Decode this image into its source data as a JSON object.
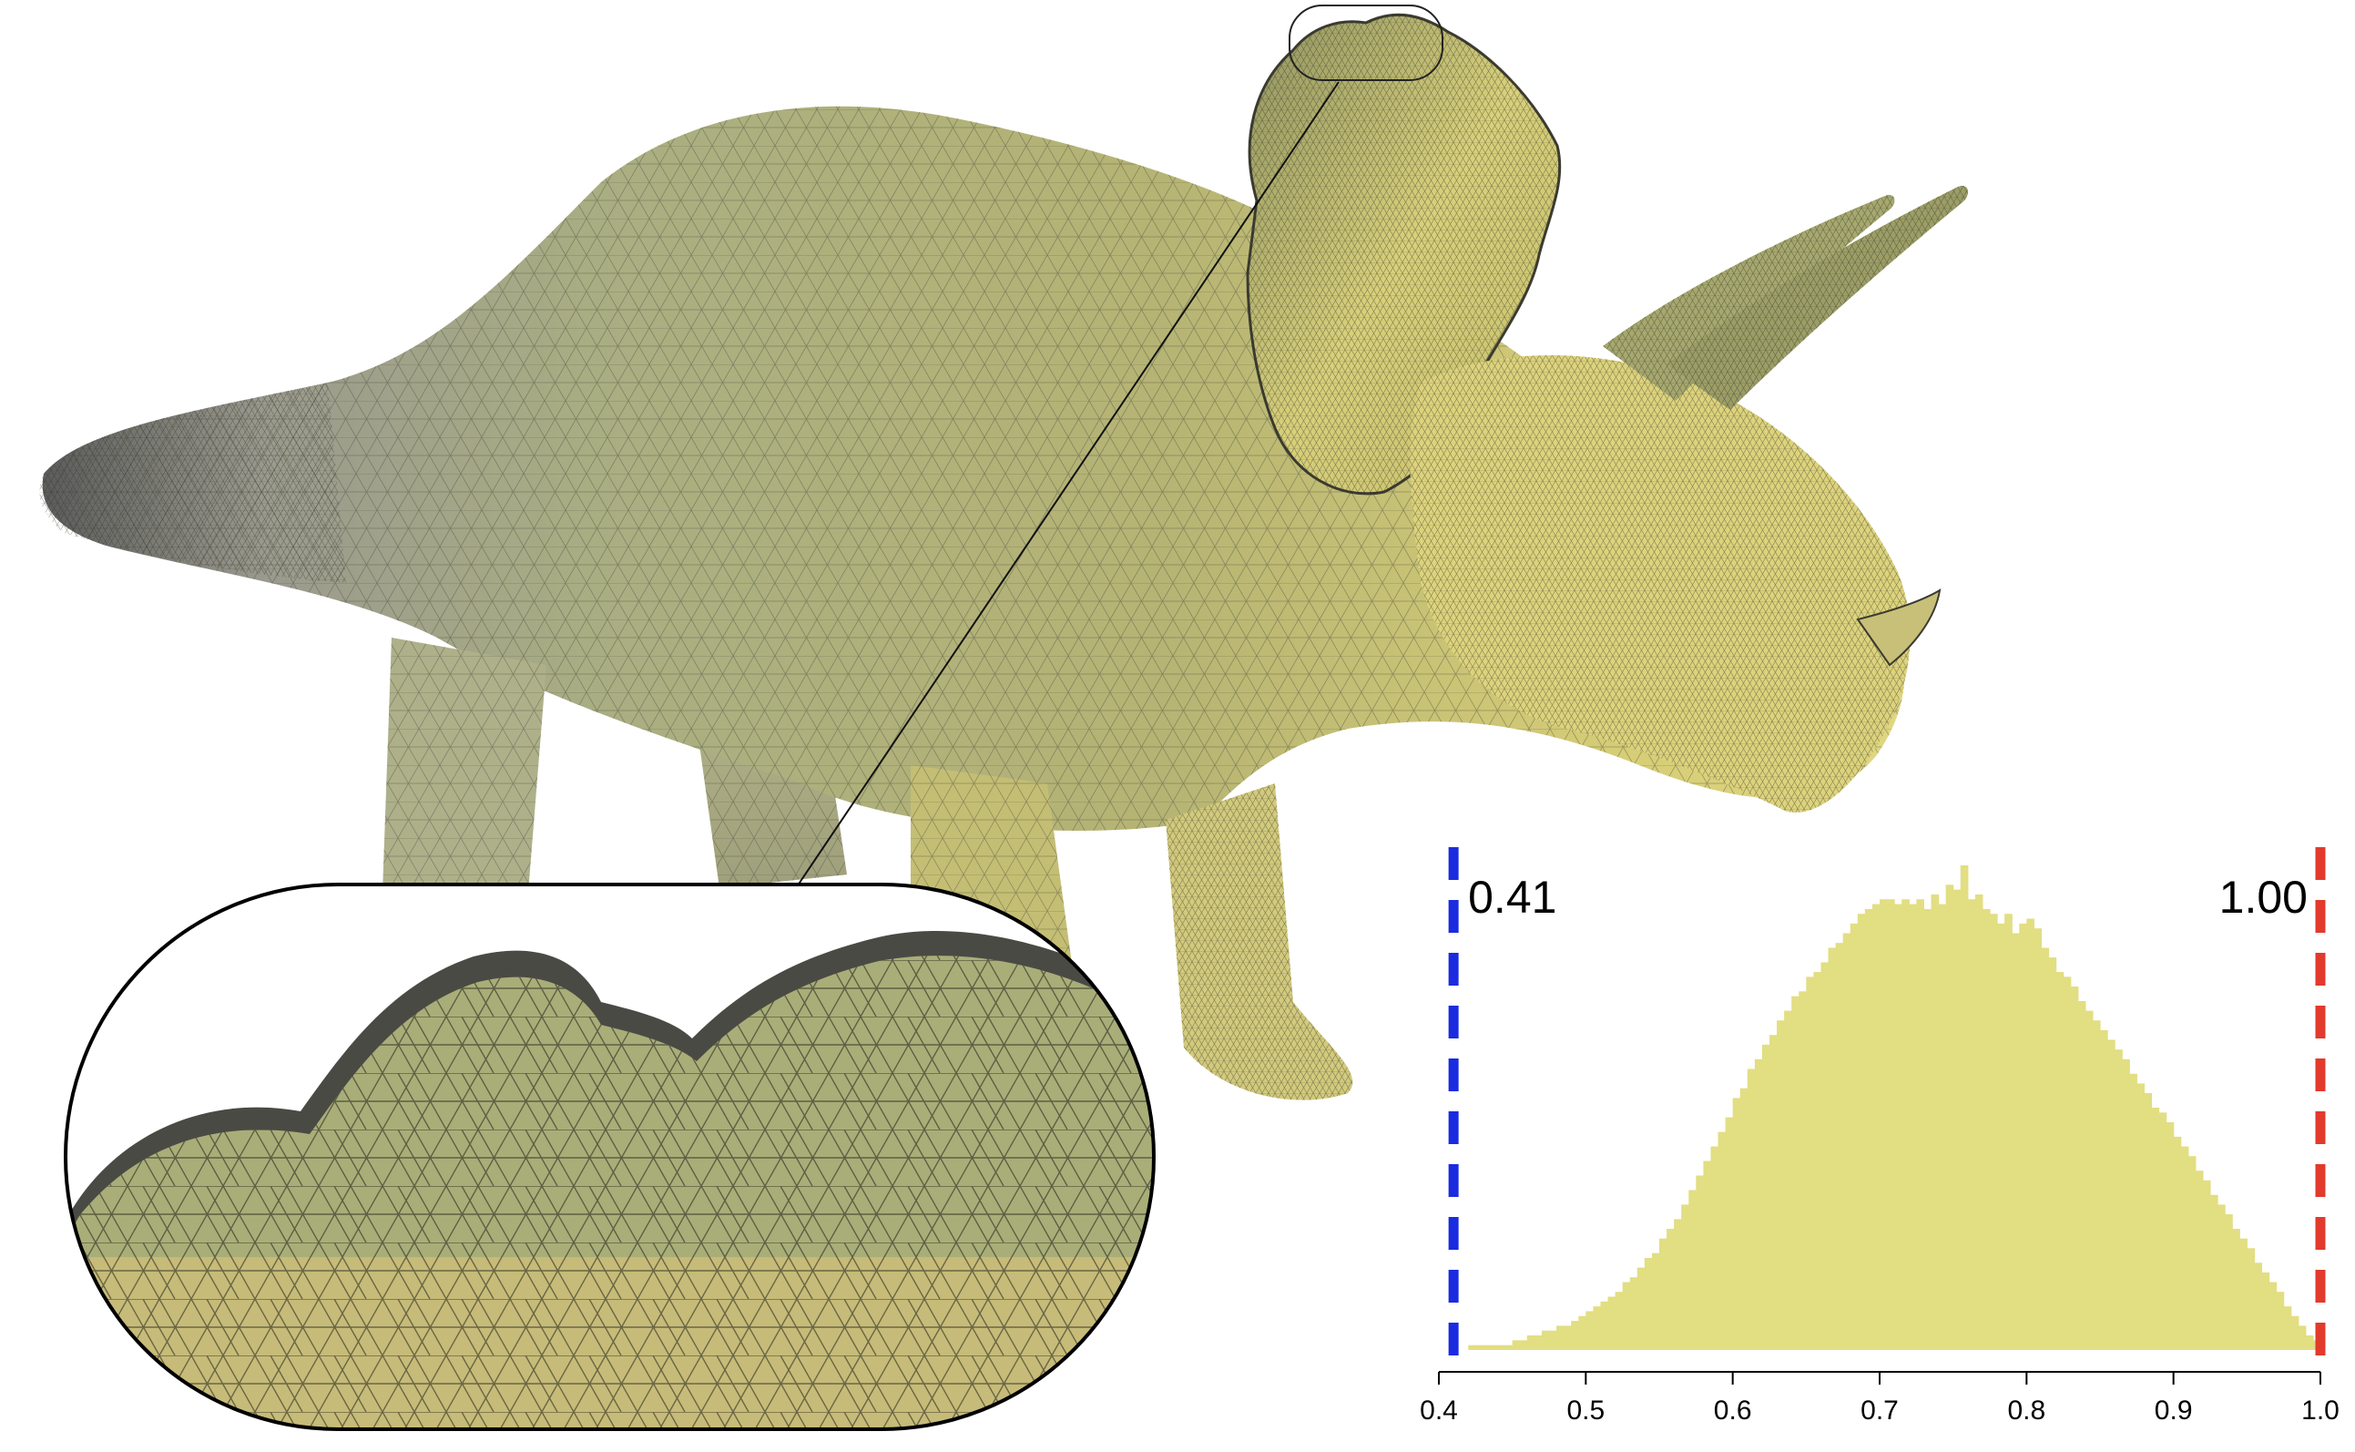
{
  "figure": {
    "subject": "triceratops-tetrahedral-mesh",
    "colors": {
      "background": "#ffffff",
      "mesh_dark": "#6b6b6b",
      "mesh_green": "#a7ae78",
      "mesh_yellow": "#d8d07a",
      "histogram_fill": "#e2de82",
      "min_marker": "#1a2be0",
      "max_marker": "#e23a2c"
    }
  },
  "chart_data": {
    "type": "bar",
    "xlabel": "",
    "ylabel": "",
    "xlim": [
      0.4,
      1.0
    ],
    "x_ticks": [
      "0.4",
      "0.5",
      "0.6",
      "0.7",
      "0.8",
      "0.9",
      "1.0"
    ],
    "x_tick_values": [
      0.4,
      0.5,
      0.6,
      0.7,
      0.8,
      0.9,
      1.0
    ],
    "grid": false,
    "bin_start": 0.42,
    "bin_width": 0.005,
    "values": [
      0.01,
      0.01,
      0.01,
      0.01,
      0.01,
      0.01,
      0.02,
      0.02,
      0.03,
      0.03,
      0.04,
      0.04,
      0.05,
      0.05,
      0.06,
      0.07,
      0.08,
      0.09,
      0.1,
      0.11,
      0.12,
      0.14,
      0.15,
      0.17,
      0.19,
      0.2,
      0.23,
      0.25,
      0.27,
      0.3,
      0.33,
      0.36,
      0.39,
      0.42,
      0.45,
      0.48,
      0.52,
      0.54,
      0.58,
      0.6,
      0.63,
      0.65,
      0.68,
      0.7,
      0.73,
      0.74,
      0.77,
      0.78,
      0.8,
      0.83,
      0.84,
      0.86,
      0.88,
      0.9,
      0.91,
      0.92,
      0.93,
      0.93,
      0.92,
      0.93,
      0.92,
      0.93,
      0.91,
      0.94,
      0.92,
      0.96,
      0.95,
      1.0,
      0.93,
      0.94,
      0.91,
      0.9,
      0.88,
      0.9,
      0.86,
      0.88,
      0.89,
      0.87,
      0.83,
      0.81,
      0.78,
      0.77,
      0.75,
      0.72,
      0.7,
      0.68,
      0.66,
      0.64,
      0.62,
      0.6,
      0.57,
      0.55,
      0.53,
      0.5,
      0.49,
      0.47,
      0.44,
      0.42,
      0.4,
      0.37,
      0.35,
      0.32,
      0.3,
      0.28,
      0.25,
      0.23,
      0.21,
      0.18,
      0.16,
      0.14,
      0.12,
      0.09,
      0.07,
      0.05,
      0.03,
      0.02
    ],
    "markers": [
      {
        "name": "min",
        "value": 0.41,
        "label": "0.41",
        "color": "#1a2be0"
      },
      {
        "name": "max",
        "value": 1.0,
        "label": "1.00",
        "color": "#e23a2c"
      }
    ]
  }
}
